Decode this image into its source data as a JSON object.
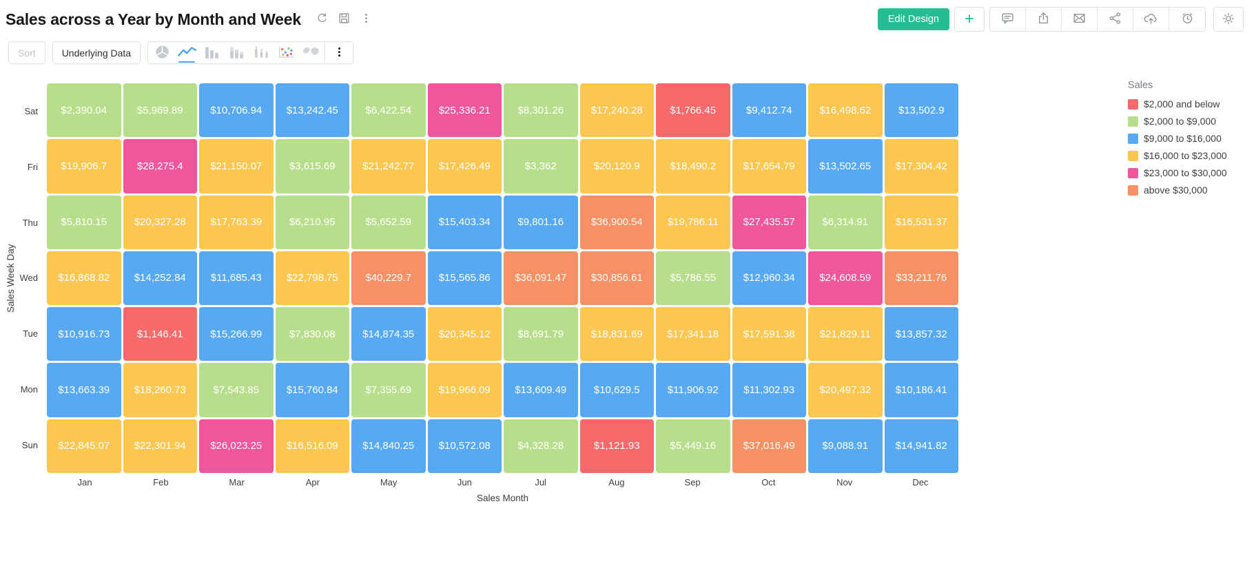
{
  "header": {
    "title": "Sales across a Year by Month and Week",
    "title_icons": [
      "refresh-icon",
      "save-icon",
      "kebab-icon"
    ],
    "edit_design_label": "Edit Design",
    "add_label": "+",
    "action_icons": [
      "comment-icon",
      "export-icon",
      "email-icon",
      "share-icon",
      "cloud-upload-icon",
      "schedule-icon"
    ],
    "settings_icon": "gear-icon"
  },
  "toolbar": {
    "sort_label": "Sort",
    "underlying_data_label": "Underlying Data",
    "chart_types": [
      {
        "icon": "pie-chart-icon",
        "active": false
      },
      {
        "icon": "line-chart-icon",
        "active": true
      },
      {
        "icon": "column-chart-icon",
        "active": false
      },
      {
        "icon": "stacked-column-chart-icon",
        "active": false
      },
      {
        "icon": "bar-chart-icon",
        "active": false
      },
      {
        "icon": "scatter-chart-icon",
        "active": false
      },
      {
        "icon": "map-chart-icon",
        "active": false
      }
    ],
    "more_icon": "kebab-icon"
  },
  "legend": {
    "title": "Sales"
  },
  "chart_data": {
    "type": "heatmap",
    "title": "Sales across a Year by Month and Week",
    "xlabel": "Sales Month",
    "ylabel": "Sales Week Day",
    "legend_title": "Sales",
    "legend_position": "right",
    "x_categories": [
      "Jan",
      "Feb",
      "Mar",
      "Apr",
      "May",
      "Jun",
      "Jul",
      "Aug",
      "Sep",
      "Oct",
      "Nov",
      "Dec"
    ],
    "y_categories": [
      "Sat",
      "Fri",
      "Thu",
      "Wed",
      "Tue",
      "Mon",
      "Sun"
    ],
    "values_display": [
      [
        "$2,390.04",
        "$5,969.89",
        "$10,706.94",
        "$13,242.45",
        "$6,422.54",
        "$25,336.21",
        "$8,301.26",
        "$17,240.28",
        "$1,766.45",
        "$9,412.74",
        "$16,498.62",
        "$13,502.9"
      ],
      [
        "$19,906.7",
        "$28,275.4",
        "$21,150.07",
        "$3,615.69",
        "$21,242.77",
        "$17,426.49",
        "$3,362",
        "$20,120.9",
        "$18,490.2",
        "$17,654.79",
        "$13,502.65",
        "$17,304.42"
      ],
      [
        "$5,810.15",
        "$20,327.28",
        "$17,763.39",
        "$6,210.95",
        "$5,652.59",
        "$15,403.34",
        "$9,801.16",
        "$36,900.54",
        "$19,786.11",
        "$27,435.57",
        "$6,314.91",
        "$16,531.37"
      ],
      [
        "$16,868.82",
        "$14,252.84",
        "$11,685.43",
        "$22,798.75",
        "$40,229.7",
        "$15,565.86",
        "$36,091.47",
        "$30,856.61",
        "$5,786.55",
        "$12,960.34",
        "$24,608.59",
        "$33,211.76"
      ],
      [
        "$10,916.73",
        "$1,146.41",
        "$15,266.99",
        "$7,830.08",
        "$14,874.35",
        "$20,345.12",
        "$8,691.79",
        "$18,831.69",
        "$17,341.18",
        "$17,591.38",
        "$21,829.11",
        "$13,857.32"
      ],
      [
        "$13,663.39",
        "$18,260.73",
        "$7,543.85",
        "$15,760.84",
        "$7,355.69",
        "$19,966.09",
        "$13,609.49",
        "$10,629.5",
        "$11,906.92",
        "$11,302.93",
        "$20,497.32",
        "$10,186.41"
      ],
      [
        "$22,845.07",
        "$22,301.94",
        "$26,023.25",
        "$16,516.09",
        "$14,840.25",
        "$10,572.08",
        "$4,328.28",
        "$1,121.93",
        "$5,449.16",
        "$37,016.49",
        "$9,088.91",
        "$14,941.82"
      ]
    ],
    "color_bins": [
      {
        "label": "$2,000 and below",
        "color": "#F7696B",
        "max": 2000
      },
      {
        "label": "$2,000 to $9,000",
        "color": "#B7DF8B",
        "max": 9000
      },
      {
        "label": "$9,000 to $16,000",
        "color": "#57A9F3",
        "max": 16000
      },
      {
        "label": "$16,000 to $23,000",
        "color": "#FBC751",
        "max": 23000
      },
      {
        "label": "$23,000 to $30,000",
        "color": "#F0569B",
        "max": 30000
      },
      {
        "label": "above $30,000",
        "color": "#F79064",
        "max": null
      }
    ]
  },
  "colors": {
    "accent_teal": "#23BF92",
    "active_blue": "#45A7E8",
    "icon_gray": "#8E9499"
  }
}
